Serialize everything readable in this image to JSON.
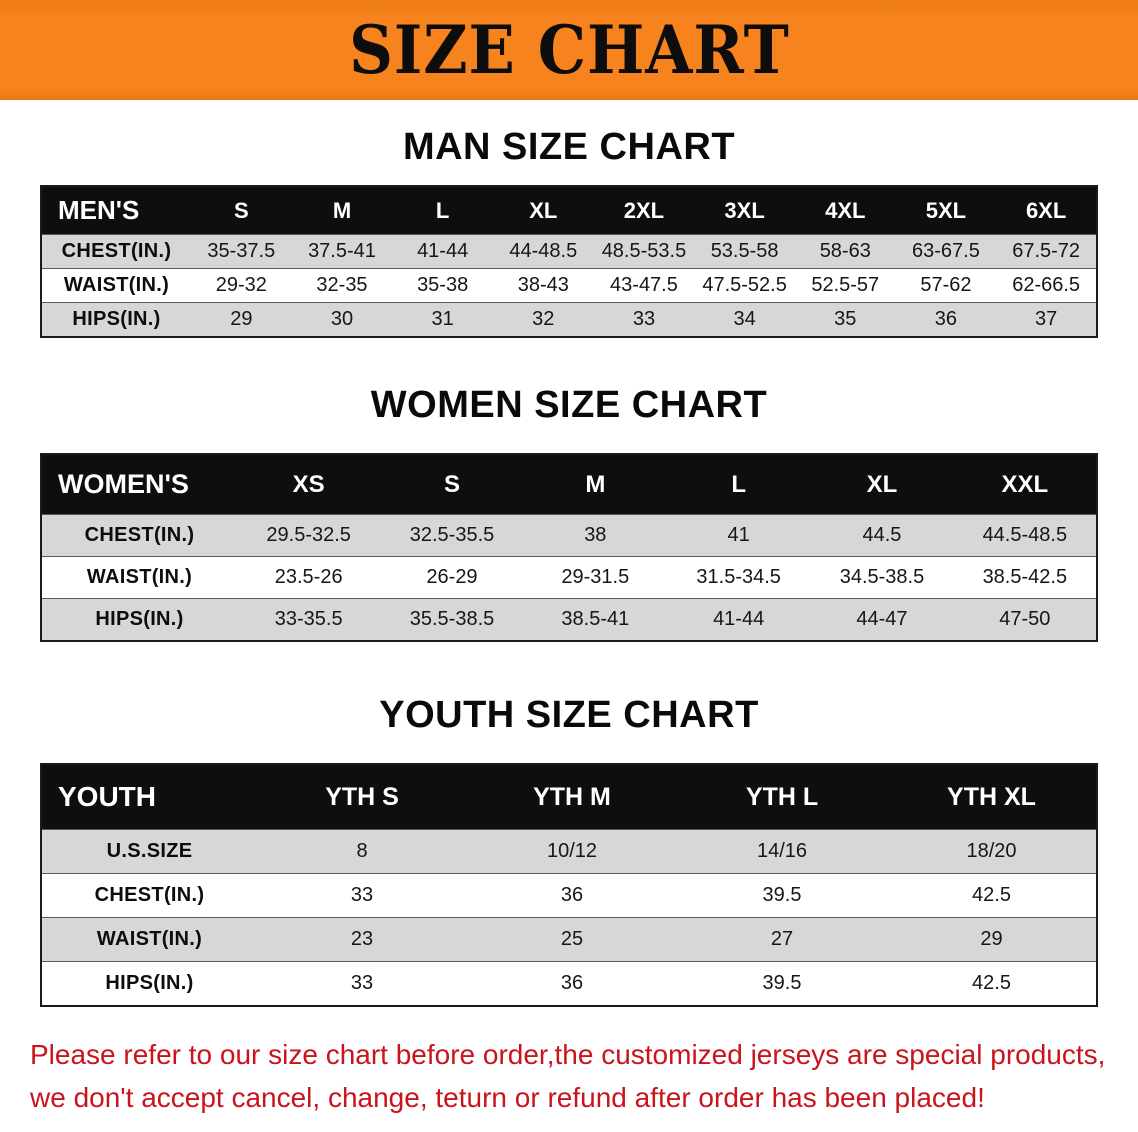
{
  "banner": {
    "title": "SIZE CHART",
    "bg_color": "#f6831e",
    "title_color": "#0d0d0d"
  },
  "sections": [
    {
      "id": "men",
      "heading": "MAN SIZE CHART",
      "table": {
        "header": [
          "MEN'S",
          "S",
          "M",
          "L",
          "XL",
          "2XL",
          "3XL",
          "4XL",
          "5XL",
          "6XL"
        ],
        "rows": [
          {
            "label": "CHEST(IN.)",
            "values": [
              "35-37.5",
              "37.5-41",
              "41-44",
              "44-48.5",
              "48.5-53.5",
              "53.5-58",
              "58-63",
              "63-67.5",
              "67.5-72"
            ]
          },
          {
            "label": "WAIST(IN.)",
            "values": [
              "29-32",
              "32-35",
              "35-38",
              "38-43",
              "43-47.5",
              "47.5-52.5",
              "52.5-57",
              "57-62",
              "62-66.5"
            ]
          },
          {
            "label": "HIPS(IN.)",
            "values": [
              "29",
              "30",
              "31",
              "32",
              "33",
              "34",
              "35",
              "36",
              "37"
            ]
          }
        ]
      }
    },
    {
      "id": "women",
      "heading": "WOMEN SIZE CHART",
      "table": {
        "header": [
          "WOMEN'S",
          "XS",
          "S",
          "M",
          "L",
          "XL",
          "XXL"
        ],
        "rows": [
          {
            "label": "CHEST(IN.)",
            "values": [
              "29.5-32.5",
              "32.5-35.5",
              "38",
              "41",
              "44.5",
              "44.5-48.5"
            ]
          },
          {
            "label": "WAIST(IN.)",
            "values": [
              "23.5-26",
              "26-29",
              "29-31.5",
              "31.5-34.5",
              "34.5-38.5",
              "38.5-42.5"
            ]
          },
          {
            "label": "HIPS(IN.)",
            "values": [
              "33-35.5",
              "35.5-38.5",
              "38.5-41",
              "41-44",
              "44-47",
              "47-50"
            ]
          }
        ]
      }
    },
    {
      "id": "youth",
      "heading": "YOUTH SIZE CHART",
      "table": {
        "header": [
          "YOUTH",
          "YTH S",
          "YTH M",
          "YTH L",
          "YTH XL"
        ],
        "rows": [
          {
            "label": "U.S.SIZE",
            "values": [
              "8",
              "10/12",
              "14/16",
              "18/20"
            ]
          },
          {
            "label": "CHEST(IN.)",
            "values": [
              "33",
              "36",
              "39.5",
              "42.5"
            ]
          },
          {
            "label": "WAIST(IN.)",
            "values": [
              "23",
              "25",
              "27",
              "29"
            ]
          },
          {
            "label": "HIPS(IN.)",
            "values": [
              "33",
              "36",
              "39.5",
              "42.5"
            ]
          }
        ]
      }
    }
  ],
  "disclaimer": {
    "line1": "Please refer to our size chart before order,the customized jerseys are special products,",
    "line2": "we don't accept cancel, change, teturn or refund after order has been placed!",
    "text_color": "#c9141d"
  },
  "colors": {
    "banner_bg": "#f6831e",
    "table_header_bg": "#0e0e0e",
    "table_header_text": "#ffffff",
    "row_alt_bg": "#d7d7d7",
    "disclaimer_red": "#c9141d"
  }
}
